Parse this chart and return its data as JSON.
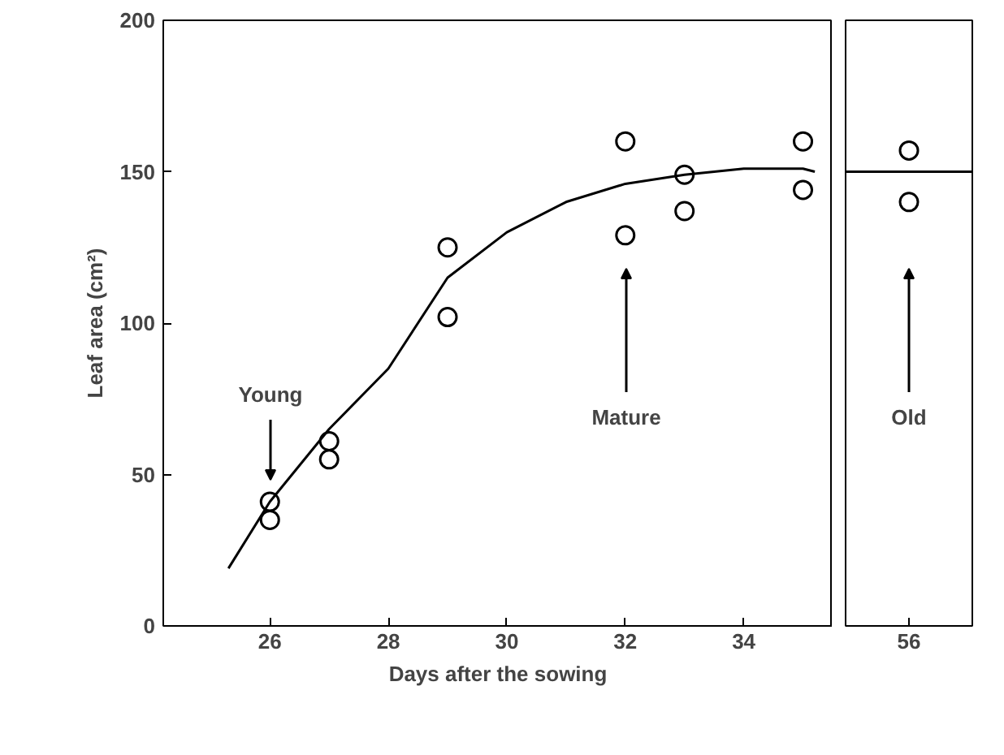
{
  "chart_data": [
    {
      "type": "scatter",
      "xlabel": "Days after the sowing",
      "ylabel": "Leaf area (cm²)",
      "xlim": [
        24.2,
        35.5
      ],
      "ylim": [
        0,
        200
      ],
      "xticks": [
        26,
        28,
        30,
        32,
        34
      ],
      "yticks": [
        0,
        50,
        100,
        150,
        200
      ],
      "marker": "circle",
      "grid": false,
      "series": [
        {
          "color": "#000000",
          "x": [
            26,
            26,
            27,
            27,
            29,
            29,
            32,
            32,
            33,
            33,
            35,
            35
          ],
          "values": [
            41,
            35,
            61,
            55,
            125,
            102,
            160,
            129,
            149,
            137,
            160,
            144
          ]
        },
        {
          "type": "line",
          "color": "#000000",
          "marker": "none",
          "x": [
            25.3,
            26,
            27,
            28,
            29,
            30,
            31,
            32,
            33,
            34,
            35,
            35.2
          ],
          "values": [
            19,
            41,
            65,
            85,
            115,
            130,
            140,
            146,
            149,
            151,
            151,
            150
          ]
        }
      ],
      "annotations": [
        "Young",
        "Mature"
      ]
    },
    {
      "type": "scatter",
      "categories": [
        "56"
      ],
      "ylim": [
        0,
        200
      ],
      "yticks": [
        0,
        50,
        100,
        150,
        200
      ],
      "tick_labels": "x",
      "marker": "circle",
      "grid": false,
      "series": [
        {
          "color": "#000000",
          "x": [
            "56",
            "56"
          ],
          "values": [
            157,
            140
          ]
        }
      ],
      "ref_lines": [
        {
          "axis": "y",
          "value": 150,
          "color": "#000000"
        }
      ],
      "annotations": [
        "Old"
      ]
    }
  ]
}
